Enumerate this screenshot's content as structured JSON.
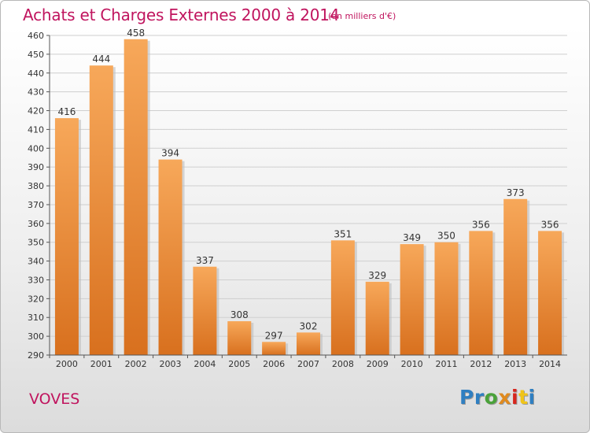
{
  "chart_data": {
    "type": "bar",
    "title": "Achats et Charges Externes 2000 à 2014",
    "subtitle": "(en milliers d'€)",
    "categories": [
      "2000",
      "2001",
      "2002",
      "2003",
      "2004",
      "2005",
      "2006",
      "2007",
      "2008",
      "2009",
      "2010",
      "2011",
      "2012",
      "2013",
      "2014"
    ],
    "values": [
      416,
      444,
      458,
      394,
      337,
      308,
      297,
      302,
      351,
      329,
      349,
      350,
      356,
      373,
      356
    ],
    "ylim": [
      290,
      460
    ],
    "yticks": [
      290,
      300,
      310,
      320,
      330,
      340,
      350,
      360,
      370,
      380,
      390,
      400,
      410,
      420,
      430,
      440,
      450,
      460
    ],
    "grid": true,
    "xlabel": "",
    "ylabel": "",
    "bar_color_light": "#f7a85a",
    "bar_color_dark": "#d8701e"
  },
  "footer": {
    "town": "VOVES",
    "logo_parts": [
      "Pr",
      "o",
      "x",
      "i",
      "t",
      "i"
    ]
  },
  "colors": {
    "title": "#c0145e",
    "grid": "#cfcfcf",
    "axis": "#555555"
  }
}
